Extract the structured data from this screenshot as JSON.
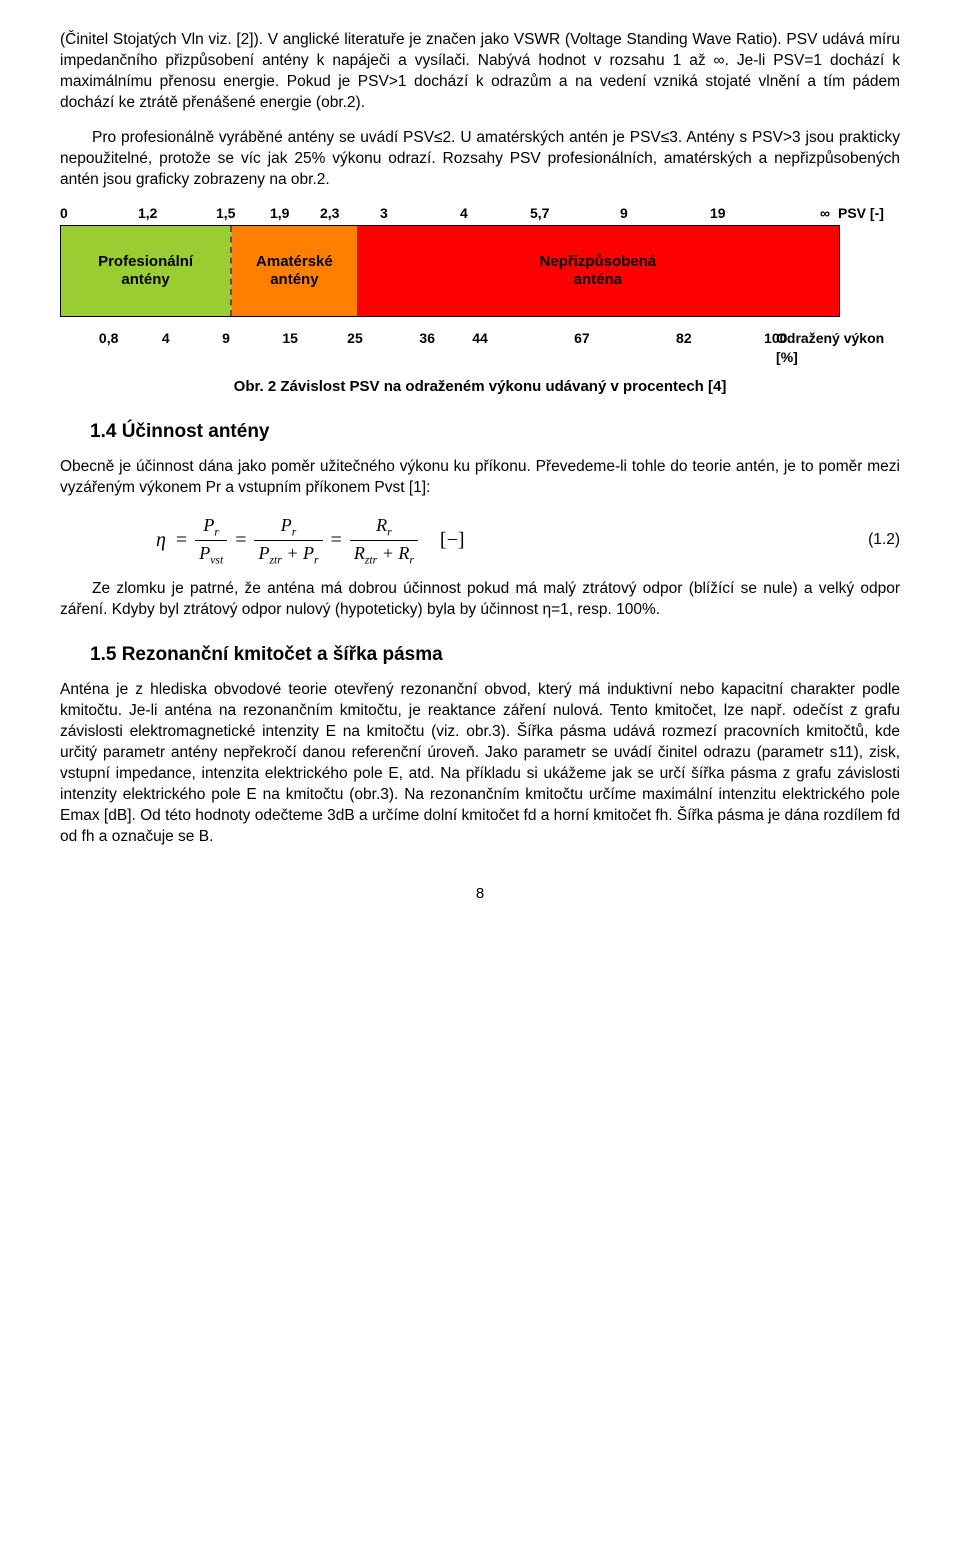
{
  "para1": "(Činitel Stojatých Vln viz. [2]). V anglické literatuře je značen jako VSWR (Voltage Standing Wave Ratio). PSV udává míru impedančního přizpůsobení antény k napáječi a vysílači. Nabývá hodnot v rozsahu 1 až ∞. Je-li PSV=1 dochází k maximálnímu přenosu energie. Pokud je PSV>1 dochází k odrazům a na vedení vzniká stojaté vlnění a tím pádem dochází ke ztrátě přenášené energie (obr.2).",
  "para2": "Pro profesionálně vyráběné antény se uvádí PSV≤2. U amatérských antén je PSV≤3. Antény s PSV>3 jsou prakticky nepoužitelné, protože se víc jak 25% výkonu odrazí. Rozsahy PSV profesionálních, amatérských a nepřizpůsobených antén jsou graficky zobrazeny na obr.2.",
  "chart": {
    "top_ticks": [
      "0",
      "1,2",
      "1,5",
      "1,9",
      "2,3",
      "3",
      "4",
      "5,7",
      "9",
      "19",
      "∞"
    ],
    "top_label": "PSV [-]",
    "bottom_ticks": [
      "0,8",
      "4",
      "9",
      "15",
      "25",
      "36",
      "44",
      "67",
      "82",
      "100"
    ],
    "bottom_label": "Odražený výkon [%]",
    "segments": [
      {
        "label": "Profesionální\nantény",
        "color": "#9acd32",
        "width_pct": 22,
        "dashed_border": true
      },
      {
        "label": "Amatérské\nantény",
        "color": "#ff7f00",
        "width_pct": 16,
        "dashed_border": false
      },
      {
        "label": "Nepřizpůsobená\nanténa",
        "color": "#ff0000",
        "width_pct": 62,
        "dashed_border": false
      }
    ],
    "caption": "Obr. 2 Závislost PSV na odraženém výkonu udávaný v procentech [4]"
  },
  "h14": "1.4 Účinnost antény",
  "para3": "Obecně je účinnost dána jako poměr užitečného výkonu ku příkonu. Převedeme-li tohle do teorie antén, je to poměr mezi vyzářeným výkonem Pr a vstupním příkonem Pvst [1]:",
  "eq": {
    "eta": "η",
    "f1n": "Pr",
    "f1d": "Pvst",
    "f2n": "Pr",
    "f2d": "Pztr + Pr",
    "f3n": "Rr",
    "f3d": "Rztr + Rr",
    "unit": "[−]",
    "num": "(1.2)"
  },
  "para4": "Ze zlomku je patrné, že anténa má dobrou účinnost pokud má malý ztrátový odpor (blížící se nule) a velký odpor záření. Kdyby byl ztrátový odpor nulový (hypoteticky) byla by účinnost η=1, resp. 100%.",
  "h15": "1.5 Rezonanční kmitočet a šířka pásma",
  "para5": "Anténa je z hlediska obvodové teorie otevřený rezonanční obvod, který má induktivní nebo kapacitní charakter podle kmitočtu. Je-li anténa na rezonančním kmitočtu, je reaktance záření nulová. Tento kmitočet, lze např. odečíst z grafu závislosti elektromagnetické intenzity E na kmitočtu (viz. obr.3). Šířka pásma udává rozmezí pracovních kmitočtů, kde určitý parametr antény nepřekročí danou referenční úroveň. Jako parametr se uvádí činitel odrazu (parametr s11), zisk, vstupní impedance, intenzita elektrického pole E, atd. Na příkladu si ukážeme jak se určí šířka pásma z grafu závislosti intenzity elektrického pole E na kmitočtu (obr.3). Na rezonančním kmitočtu určíme maximální intenzitu elektrického pole Emax [dB]. Od této hodnoty odečteme 3dB a určíme dolní kmitočet fd a horní kmitočet fh. Šířka pásma je dána rozdílem fd  od fh  a označuje se B.",
  "pagenum": "8"
}
